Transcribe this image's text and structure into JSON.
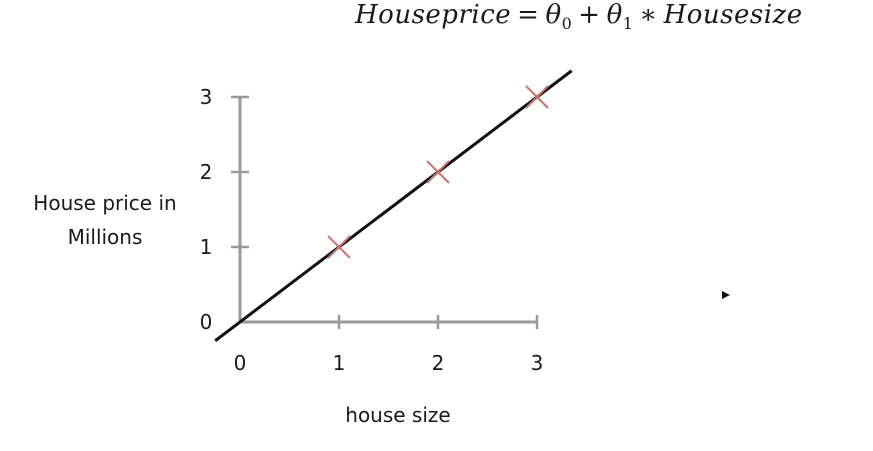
{
  "equation": {
    "lhs": "Houseprice",
    "eq": "=",
    "theta0": "θ",
    "sub0": "0",
    "plus": "+",
    "theta1": "θ",
    "sub1": "1",
    "times": "∗",
    "rhs": "Housesize"
  },
  "chart_data": {
    "type": "scatter",
    "xlabel": "house size",
    "ylabel": [
      "House price in",
      "Millions"
    ],
    "xlim": [
      0,
      3
    ],
    "ylim": [
      0,
      3
    ],
    "x_ticks": [
      0,
      1,
      2,
      3
    ],
    "y_ticks": [
      0,
      1,
      2,
      3
    ],
    "x_tick_labels": [
      "0",
      "1",
      "2",
      "3"
    ],
    "y_tick_labels": [
      "0",
      "1",
      "2",
      "3"
    ],
    "points": [
      {
        "x": 1,
        "y": 1
      },
      {
        "x": 2,
        "y": 2
      },
      {
        "x": 3,
        "y": 3
      }
    ],
    "fit_line": {
      "slope": 1,
      "intercept": 0,
      "x_from": -0.25,
      "x_to": 3.35
    },
    "colors": {
      "axis": "#9a9a9a",
      "marker": "#c9756f",
      "line": "#111111",
      "text": "#1a1a1a"
    },
    "grid": false,
    "legend": "none"
  }
}
